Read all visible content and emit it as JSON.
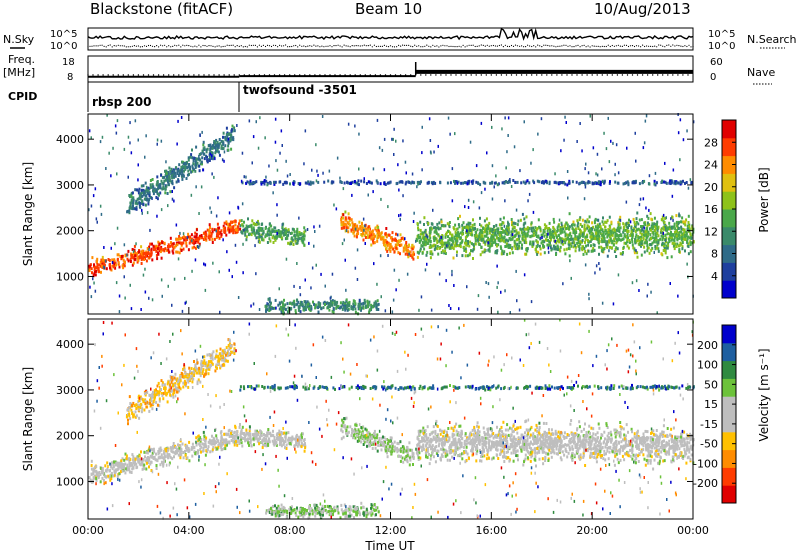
{
  "header": {
    "radar": "Blackstone (fitACF)",
    "beam": "Beam 10",
    "date": "10/Aug/2013"
  },
  "summary": {
    "nsky_label": "N.Sky",
    "nsearch_label": "N.Search",
    "freq_label_1": "Freq.",
    "freq_label_2": "[MHz]",
    "nave_label": "Nave",
    "cpid_label": "CPID",
    "left_ticks_top": [
      "10^5",
      "10^0"
    ],
    "right_ticks_top": [
      "10^5",
      "10^0"
    ],
    "freq_ticks": [
      "18",
      "8"
    ],
    "nave_ticks": [
      "60",
      "0"
    ],
    "cpid_segments": [
      {
        "start_hour": 0,
        "label": "rbsp 200"
      },
      {
        "start_hour": 6,
        "label": "twofsound -3501"
      }
    ],
    "freq_steps": [
      {
        "from_hour": 0,
        "to_hour": 6,
        "value": 10.2
      },
      {
        "from_hour": 6,
        "to_hour": 13,
        "value": 10.6
      },
      {
        "from_hour": 13,
        "to_hour": 24,
        "value": 13.4
      }
    ]
  },
  "chart_data": [
    {
      "type": "heatmap",
      "title": "",
      "xlabel": "Time UT",
      "ylabel": "Slant Range [km]",
      "xlim": [
        0,
        24
      ],
      "ylim": [
        180,
        4550
      ],
      "x_ticks": [
        "00:00",
        "04:00",
        "08:00",
        "12:00",
        "16:00",
        "20:00",
        "00:00"
      ],
      "y_ticks": [
        "1000",
        "2000",
        "3000",
        "4000"
      ],
      "colorbar": {
        "label": "Power [dB]",
        "range": [
          0,
          32
        ],
        "ticks": [
          "4",
          "8",
          "12",
          "16",
          "20",
          "24",
          "28"
        ],
        "colors": [
          "#0000cc",
          "#1e3f9e",
          "#2f6b88",
          "#3a8a6a",
          "#4aa84a",
          "#8ec21a",
          "#e0c010",
          "#ff8c00",
          "#ff3c00",
          "#e00000"
        ]
      },
      "echo_bands": [
        {
          "from_hour": 0.0,
          "to_hour": 6.0,
          "range_start_km": 1150,
          "range_end_km": 2100,
          "thickness_km": 260,
          "value": 27
        },
        {
          "from_hour": 6.0,
          "to_hour": 8.6,
          "range_start_km": 2050,
          "range_end_km": 1850,
          "thickness_km": 300,
          "value": 13
        },
        {
          "from_hour": 1.5,
          "to_hour": 5.8,
          "range_start_km": 2500,
          "range_end_km": 4100,
          "thickness_km": 350,
          "value": 9
        },
        {
          "from_hour": 10.0,
          "to_hour": 12.9,
          "range_start_km": 2200,
          "range_end_km": 1550,
          "thickness_km": 300,
          "value": 24
        },
        {
          "from_hour": 13.0,
          "to_hour": 24.0,
          "range_start_km": 1850,
          "range_end_km": 1900,
          "thickness_km": 550,
          "value": 15
        },
        {
          "from_hour": 6.0,
          "to_hour": 24.0,
          "range_start_km": 3050,
          "range_end_km": 3050,
          "thickness_km": 60,
          "value": 6
        },
        {
          "from_hour": 7.0,
          "to_hour": 11.5,
          "range_start_km": 350,
          "range_end_km": 350,
          "thickness_km": 200,
          "value": 11
        }
      ]
    },
    {
      "type": "heatmap",
      "title": "",
      "xlabel": "Time UT",
      "ylabel": "Slant Range [km]",
      "xlim": [
        0,
        24
      ],
      "ylim": [
        180,
        4550
      ],
      "x_ticks": [
        "00:00",
        "04:00",
        "08:00",
        "12:00",
        "16:00",
        "20:00",
        "00:00"
      ],
      "y_ticks": [
        "1000",
        "2000",
        "3000",
        "4000"
      ],
      "colorbar": {
        "label": "Velocity [m s⁻¹]",
        "range": [
          -250,
          250
        ],
        "ticks": [
          "200",
          "100",
          "50",
          "15",
          "-15",
          "-50",
          "-100",
          "-200"
        ],
        "colors": [
          "#e00000",
          "#ff3c00",
          "#ff8c00",
          "#ffc000",
          "#bebebe",
          "#bebebe",
          "#6cc23a",
          "#2f8a40",
          "#1e5fa0",
          "#0000cc"
        ]
      },
      "echo_bands": [
        {
          "from_hour": 0.0,
          "to_hour": 6.0,
          "range_start_km": 1150,
          "range_end_km": 2000,
          "thickness_km": 320,
          "value": 0
        },
        {
          "from_hour": 6.0,
          "to_hour": 8.6,
          "range_start_km": 2000,
          "range_end_km": 1850,
          "thickness_km": 300,
          "value": 5
        },
        {
          "from_hour": 1.5,
          "to_hour": 5.8,
          "range_start_km": 2500,
          "range_end_km": 3900,
          "thickness_km": 350,
          "value": -60
        },
        {
          "from_hour": 10.0,
          "to_hour": 12.9,
          "range_start_km": 2200,
          "range_end_km": 1550,
          "thickness_km": 300,
          "value": 40
        },
        {
          "from_hour": 13.0,
          "to_hour": 24.0,
          "range_start_km": 1850,
          "range_end_km": 1800,
          "thickness_km": 550,
          "value": 0
        },
        {
          "from_hour": 6.0,
          "to_hour": 24.0,
          "range_start_km": 3050,
          "range_end_km": 3050,
          "thickness_km": 60,
          "value": 150
        },
        {
          "from_hour": 7.0,
          "to_hour": 11.5,
          "range_start_km": 350,
          "range_end_km": 350,
          "thickness_km": 200,
          "value": 60
        }
      ]
    }
  ]
}
